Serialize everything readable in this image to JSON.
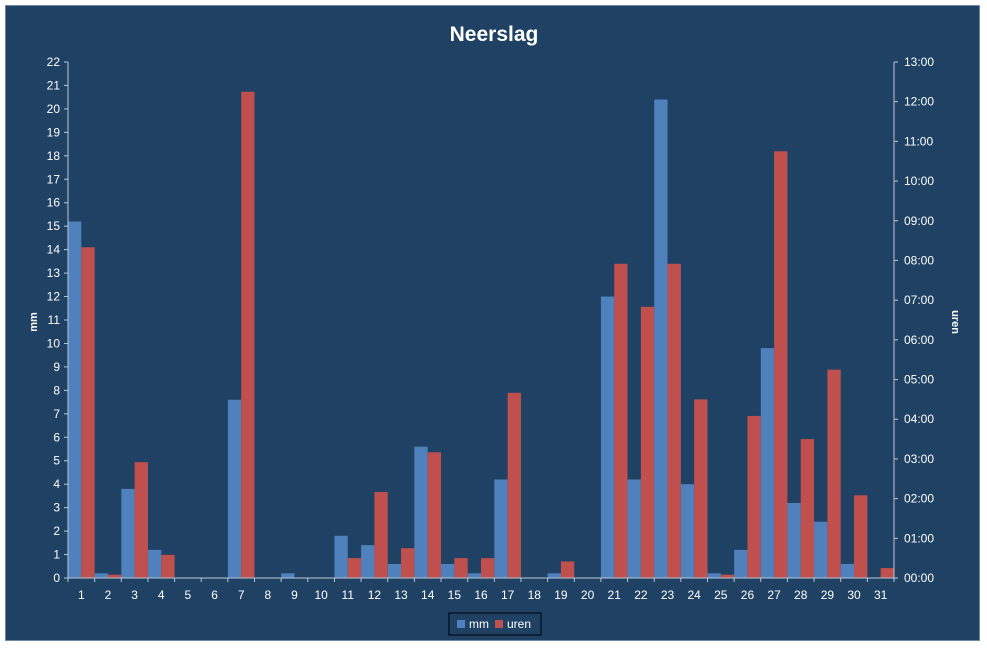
{
  "chart_data": {
    "type": "bar",
    "title": "Neerslag",
    "categories": [
      "1",
      "2",
      "3",
      "4",
      "5",
      "6",
      "7",
      "8",
      "9",
      "10",
      "11",
      "12",
      "13",
      "14",
      "15",
      "16",
      "17",
      "18",
      "19",
      "20",
      "21",
      "22",
      "23",
      "24",
      "25",
      "26",
      "27",
      "28",
      "29",
      "30",
      "31"
    ],
    "series": [
      {
        "name": "mm",
        "color": "#4f81bd",
        "axis": "left",
        "values": [
          15.2,
          0.2,
          3.8,
          1.2,
          0,
          0,
          7.6,
          0,
          0.2,
          0,
          1.8,
          1.4,
          0.6,
          5.6,
          0.6,
          0.2,
          4.2,
          0,
          0.2,
          0,
          12.0,
          4.2,
          20.4,
          4.0,
          0.2,
          1.2,
          9.8,
          3.2,
          2.4,
          0.6,
          0
        ]
      },
      {
        "name": "uren",
        "color": "#c0504d",
        "axis": "right",
        "values": [
          "08:20",
          "00:05",
          "02:55",
          "00:35",
          "00:00",
          "00:00",
          "12:15",
          "00:00",
          "00:00",
          "00:00",
          "00:30",
          "02:10",
          "00:45",
          "03:10",
          "00:30",
          "00:30",
          "04:40",
          "00:00",
          "00:25",
          "00:00",
          "07:55",
          "06:50",
          "07:55",
          "04:30",
          "00:05",
          "04:05",
          "10:45",
          "03:30",
          "05:15",
          "02:05",
          "00:15"
        ]
      }
    ],
    "ylabel": "mm",
    "ylim": [
      0,
      22
    ],
    "yticks": [
      "0",
      "1",
      "2",
      "3",
      "4",
      "5",
      "6",
      "7",
      "8",
      "9",
      "10",
      "11",
      "12",
      "13",
      "14",
      "15",
      "16",
      "17",
      "18",
      "19",
      "20",
      "21",
      "22"
    ],
    "y2label": "uren",
    "y2lim": [
      "00:00",
      "13:00"
    ],
    "y2ticks": [
      "00:00",
      "01:00",
      "02:00",
      "03:00",
      "04:00",
      "05:00",
      "06:00",
      "07:00",
      "08:00",
      "09:00",
      "10:00",
      "11:00",
      "12:00",
      "13:00"
    ],
    "grid": false,
    "legend": "bottom",
    "background": "#1f4163"
  }
}
